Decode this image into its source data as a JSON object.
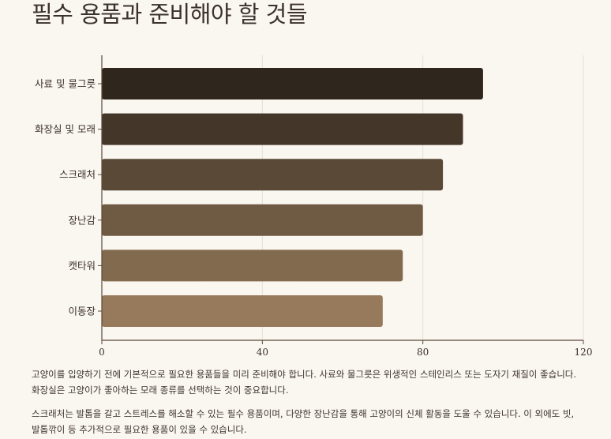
{
  "title": "필수 용품과 준비해야 할 것들",
  "chart_data": {
    "type": "bar",
    "orientation": "horizontal",
    "categories": [
      "사료 및 물그릇",
      "화장실 및 모래",
      "스크래처",
      "장난감",
      "캣타워",
      "이동장"
    ],
    "values": [
      95,
      90,
      85,
      80,
      75,
      70
    ],
    "colors": [
      "#2f261d",
      "#45362a",
      "#5b4937",
      "#6f5a43",
      "#826a4f",
      "#977a5b"
    ],
    "xlim": [
      0,
      120
    ],
    "xticks": [
      "0",
      "40",
      "80",
      "120"
    ],
    "grid": true
  },
  "paragraphs": [
    "고양이를 입양하기 전에 기본적으로 필요한 용품들을 미리 준비해야 합니다. 사료와 물그릇은 위생적인 스테인리스 또는 도자기 재질이 좋습니다. 화장실은 고양이가 좋아하는 모래 종류를 선택하는 것이 중요합니다.",
    "스크래처는 발톱을 갈고 스트레스를 해소할 수 있는 필수 용품이며, 다양한 장난감을 통해 고양이의 신체 활동을 도울 수 있습니다. 이 외에도 빗, 발톱깎이 등 추가적으로 필요한 용품이 있을 수 있습니다."
  ]
}
